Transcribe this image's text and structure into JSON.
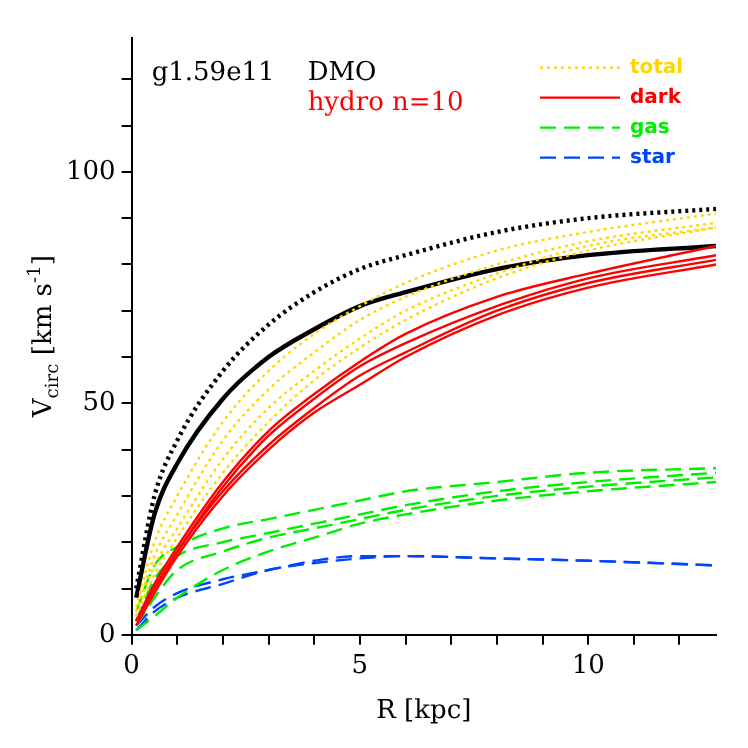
{
  "chart_data": {
    "type": "line",
    "xlabel": "R [kpc]",
    "ylabel": "V$_{circ}$ [km s$^{-1}$]",
    "annotations": [
      "g1.59e11",
      "DMO",
      "hydro n=10"
    ],
    "x": [
      0.1,
      0.5,
      1,
      2,
      3,
      4,
      5,
      6,
      8,
      10,
      12.8
    ],
    "xlim": [
      0,
      12.8
    ],
    "ylim": [
      0,
      129
    ],
    "xticks": [
      0,
      {
        "value": 1,
        "label": null
      },
      {
        "value": 2,
        "label": null
      },
      {
        "value": 3,
        "label": null
      },
      {
        "value": 4,
        "label": null
      },
      5,
      {
        "value": 6,
        "label": null
      },
      {
        "value": 7,
        "label": null
      },
      {
        "value": 8,
        "label": null
      },
      {
        "value": 9,
        "label": null
      },
      10,
      {
        "value": 11,
        "label": null
      },
      {
        "value": 12,
        "label": null
      }
    ],
    "yticks": [
      0,
      {
        "value": 10,
        "label": null
      },
      {
        "value": 20,
        "label": null
      },
      {
        "value": 30,
        "label": null
      },
      {
        "value": 40,
        "label": null
      },
      50,
      {
        "value": 60,
        "label": null
      },
      {
        "value": 70,
        "label": null
      },
      {
        "value": 80,
        "label": null
      },
      {
        "value": 90,
        "label": null
      },
      100,
      {
        "value": 110,
        "label": null
      },
      {
        "value": 120,
        "label": null
      }
    ],
    "legend": "top right",
    "marker": "none",
    "series": [
      {
        "name": "total",
        "color": "#ffd700",
        "line_style": "dotted",
        "values": [
          6,
          20,
          30,
          46,
          57,
          65,
          71,
          76,
          83,
          87,
          91
        ]
      },
      {
        "color": "#ffd700",
        "line_style": "dotted",
        "values": [
          5,
          17,
          26,
          42,
          53,
          61,
          68,
          73,
          80,
          85,
          89
        ]
      },
      {
        "color": "#ffd700",
        "line_style": "dotted",
        "values": [
          5,
          15,
          23,
          38,
          49,
          57,
          64,
          70,
          78,
          84,
          88
        ]
      },
      {
        "color": "#ffd700",
        "line_style": "dotted",
        "values": [
          4,
          13,
          21,
          35,
          46,
          55,
          62,
          68,
          77,
          83,
          88
        ]
      },
      {
        "name": "dark",
        "color": "#ff0000",
        "line_style": "solid",
        "values": [
          3,
          11,
          19,
          33,
          44,
          52,
          59,
          65,
          73,
          78,
          84
        ]
      },
      {
        "color": "#ff0000",
        "line_style": "solid",
        "values": [
          3,
          10,
          18,
          32,
          43,
          51,
          58,
          63,
          71,
          77,
          82
        ]
      },
      {
        "color": "#ff0000",
        "line_style": "solid",
        "values": [
          3,
          10,
          18,
          31,
          41,
          49,
          56,
          61,
          70,
          76,
          81
        ]
      },
      {
        "color": "#ff0000",
        "line_style": "solid",
        "values": [
          2,
          9,
          17,
          30,
          40,
          48,
          54,
          60,
          69,
          75,
          80
        ]
      },
      {
        "name": "gas",
        "color": "#00ee00",
        "line_style": "dashed",
        "values": [
          5,
          15,
          19,
          23,
          25,
          27,
          29,
          31,
          33,
          35,
          36
        ]
      },
      {
        "color": "#00ee00",
        "line_style": "dashed",
        "values": [
          3,
          12,
          17,
          20,
          22,
          24,
          26,
          28,
          31,
          33,
          35
        ]
      },
      {
        "color": "#00ee00",
        "line_style": "dashed",
        "values": [
          2,
          8,
          14,
          18,
          21,
          23,
          25,
          27,
          30,
          32,
          34
        ]
      },
      {
        "color": "#00ee00",
        "line_style": "dashed",
        "values": [
          1,
          4,
          8,
          14,
          18,
          21,
          24,
          26,
          29,
          31,
          33
        ]
      },
      {
        "name": "star",
        "color": "#0044ff",
        "line_style": "dashed",
        "values": [
          2,
          6,
          9,
          12,
          14,
          16,
          17,
          17,
          16.5,
          16,
          15
        ]
      },
      {
        "color": "#0044ff",
        "line_style": "dashed",
        "values": [
          1,
          5,
          8,
          11,
          14,
          15.5,
          16.5,
          17,
          16.5,
          16,
          15
        ]
      },
      {
        "color": "#000000",
        "line_style": "dotted",
        "values": [
          10,
          30,
          42,
          57,
          67,
          74,
          79,
          82,
          87,
          90,
          92
        ]
      },
      {
        "color": "#000000",
        "line_style": "solid",
        "values": [
          8,
          26,
          37,
          51,
          60,
          66,
          71,
          74,
          79,
          82,
          84
        ]
      }
    ]
  }
}
